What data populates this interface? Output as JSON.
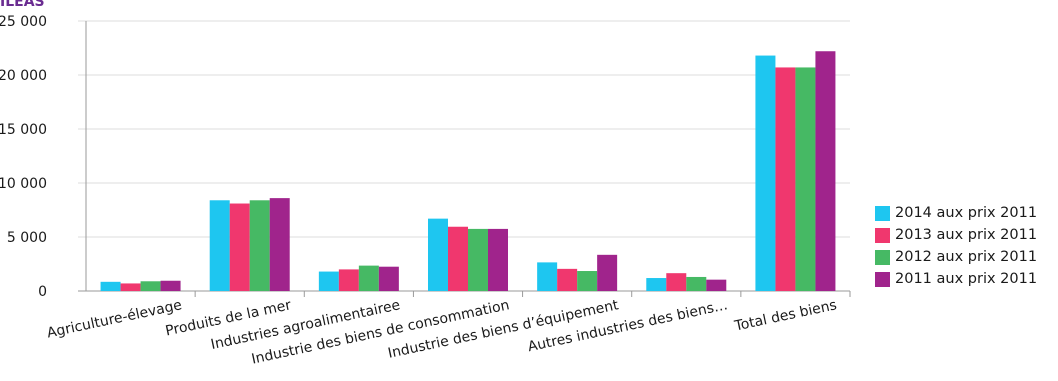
{
  "corner_label": "ILEAS",
  "chart_data": {
    "type": "bar",
    "categories": [
      "Agriculture-élevage",
      "Produits de la mer",
      "Industries agroalimentairee",
      "Industrie des biens de consommation",
      "Industrie des biens d’équipement",
      "Autres industries des biens…",
      "Total des biens"
    ],
    "series": [
      {
        "name": "2014 aux prix 2011",
        "color": "#1ec6f0",
        "values": [
          850,
          8400,
          1800,
          6700,
          2650,
          1200,
          21800
        ]
      },
      {
        "name": "2013 aux prix 2011",
        "color": "#f0376e",
        "values": [
          700,
          8100,
          2000,
          5950,
          2050,
          1650,
          20700
        ]
      },
      {
        "name": "2012 aux prix 2011",
        "color": "#46b964",
        "values": [
          900,
          8400,
          2350,
          5750,
          1850,
          1300,
          20700
        ]
      },
      {
        "name": "2011 aux prix 2011",
        "color": "#a0248c",
        "values": [
          950,
          8600,
          2250,
          5750,
          3350,
          1050,
          22200
        ]
      }
    ],
    "yticks": [
      "0",
      "5 000",
      "10 000",
      "15 000",
      "20 000",
      "25 000"
    ],
    "ylim": [
      0,
      25000
    ],
    "grid": true,
    "legend_position": "right"
  }
}
